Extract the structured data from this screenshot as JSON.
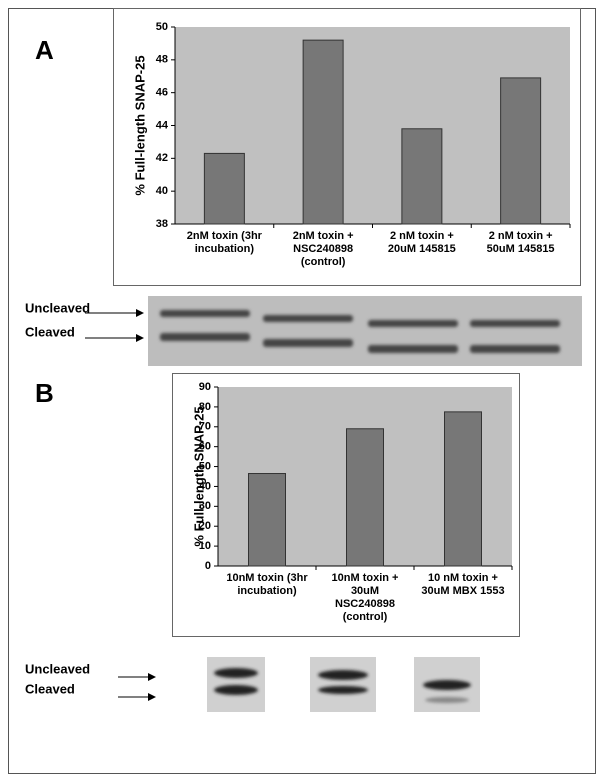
{
  "chart_data": [
    {
      "type": "bar",
      "ylabel": "% Full-length SNAP-25",
      "categories": [
        "2nM toxin (3hr incubation)",
        "2nM toxin + NSC240898 (control)",
        "2 nM toxin + 20uM 145815",
        "2 nM toxin + 50uM 145815"
      ],
      "values": [
        42.3,
        49.2,
        43.8,
        46.9
      ],
      "color": "#777777",
      "plot_background": "#c0c0c0",
      "ylim": [
        38,
        50
      ],
      "yticks": [
        38,
        40,
        42,
        44,
        46,
        48,
        50
      ],
      "grid": false
    },
    {
      "type": "bar",
      "ylabel": "% Full-length SNAP-25",
      "categories": [
        "10nM toxin (3hr incubation)",
        "10nM toxin + 30uM NSC240898 (control)",
        "10 nM toxin + 30uM MBX 1553"
      ],
      "values": [
        46.5,
        69,
        77.5
      ],
      "color": "#777777",
      "plot_background": "#c0c0c0",
      "ylim": [
        0,
        90
      ],
      "yticks": [
        0,
        10,
        20,
        30,
        40,
        50,
        60,
        70,
        80,
        90
      ],
      "grid": false
    }
  ],
  "panels": [
    {
      "label": "A",
      "blot_labels": [
        "Uncleaved",
        "Cleaved"
      ]
    },
    {
      "label": "B",
      "blot_labels": [
        "Uncleaved",
        "Cleaved"
      ]
    }
  ]
}
